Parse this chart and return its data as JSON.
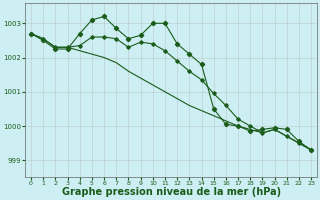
{
  "background_color": "#cdeef2",
  "grid_color": "#b0b0b0",
  "line_color": "#1a5c1a",
  "xlabel": "Graphe pression niveau de la mer (hPa)",
  "xlabel_fontsize": 7,
  "ylabel_ticks": [
    999,
    1000,
    1001,
    1002,
    1003
  ],
  "ylim": [
    998.5,
    1003.6
  ],
  "xlim": [
    -0.5,
    23.5
  ],
  "xticks": [
    0,
    1,
    2,
    3,
    4,
    5,
    6,
    7,
    8,
    9,
    10,
    11,
    12,
    13,
    14,
    15,
    16,
    17,
    18,
    19,
    20,
    21,
    22,
    23
  ],
  "series1_x": [
    0,
    1,
    2,
    3,
    4,
    5,
    6,
    7,
    8,
    9,
    10,
    11,
    12,
    13,
    14,
    15,
    16,
    17,
    18,
    19,
    20,
    21,
    22,
    23
  ],
  "series1_y": [
    1002.7,
    1002.5,
    1002.25,
    1002.25,
    1002.7,
    1003.1,
    1003.2,
    1002.85,
    1002.55,
    1002.65,
    1003.0,
    1003.0,
    1002.4,
    1002.1,
    1001.8,
    1000.5,
    1000.05,
    1000.0,
    999.85,
    999.9,
    999.95,
    999.9,
    999.55,
    999.3
  ],
  "series2_x": [
    0,
    1,
    2,
    3,
    4,
    5,
    6,
    7,
    8,
    9,
    10,
    11,
    12,
    13,
    14,
    15,
    16,
    17,
    18,
    19,
    20,
    21,
    22,
    23
  ],
  "series2_y": [
    1002.7,
    1002.55,
    1002.3,
    1002.3,
    1002.35,
    1002.6,
    1002.6,
    1002.55,
    1002.3,
    1002.45,
    1002.4,
    1002.2,
    1001.9,
    1001.6,
    1001.35,
    1000.95,
    1000.6,
    1000.2,
    1000.0,
    999.8,
    999.9,
    999.7,
    999.5,
    999.3
  ],
  "series3_x": [
    0,
    1,
    2,
    3,
    4,
    5,
    6,
    7,
    8,
    9,
    10,
    11,
    12,
    13,
    14,
    15,
    16,
    17,
    18,
    19,
    20,
    21,
    22,
    23
  ],
  "series3_y": [
    1002.7,
    1002.55,
    1002.3,
    1002.3,
    1002.2,
    1002.1,
    1002.0,
    1001.85,
    1001.6,
    1001.4,
    1001.2,
    1001.0,
    1000.8,
    1000.6,
    1000.45,
    1000.3,
    1000.15,
    1000.0,
    999.9,
    999.8,
    999.9,
    999.7,
    999.5,
    999.3
  ]
}
